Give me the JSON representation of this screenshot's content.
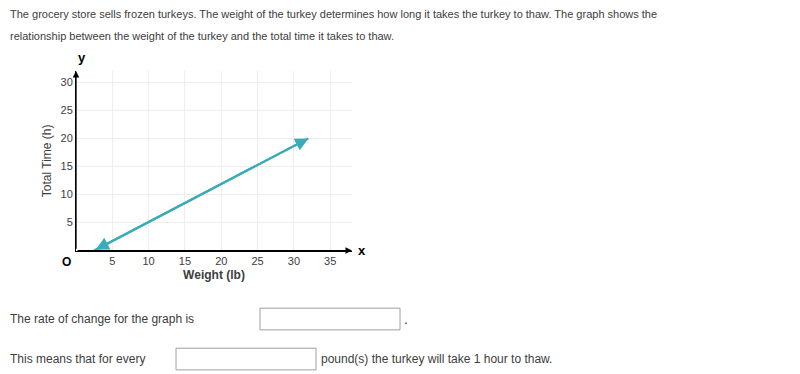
{
  "chart_data": {
    "type": "line",
    "annotations": [
      "The grocery store sells frozen turkeys. The weight of the turkey determines how long it takes the turkey to thaw. The graph shows the",
      "relationship between the weight of the turkey and the total time it takes to thaw.",
      "x",
      "y",
      "O",
      "The rate of change for the graph is",
      ".",
      "This means that for every",
      "pound(s) the turkey will take 1 hour to thaw."
    ],
    "xlabel": "Weight (lb)",
    "ylabel": "Total Time (h)",
    "x": [
      2.5,
      32
    ],
    "values": [
      0,
      20
    ],
    "color": "#3aacb8",
    "marker": "arrow",
    "xlim": [
      0,
      38
    ],
    "ylim": [
      0,
      32
    ],
    "xticks": [
      5,
      10,
      15,
      20,
      25,
      30,
      35
    ],
    "yticks": [
      5,
      10,
      15,
      20,
      25,
      30
    ],
    "grid": true
  }
}
